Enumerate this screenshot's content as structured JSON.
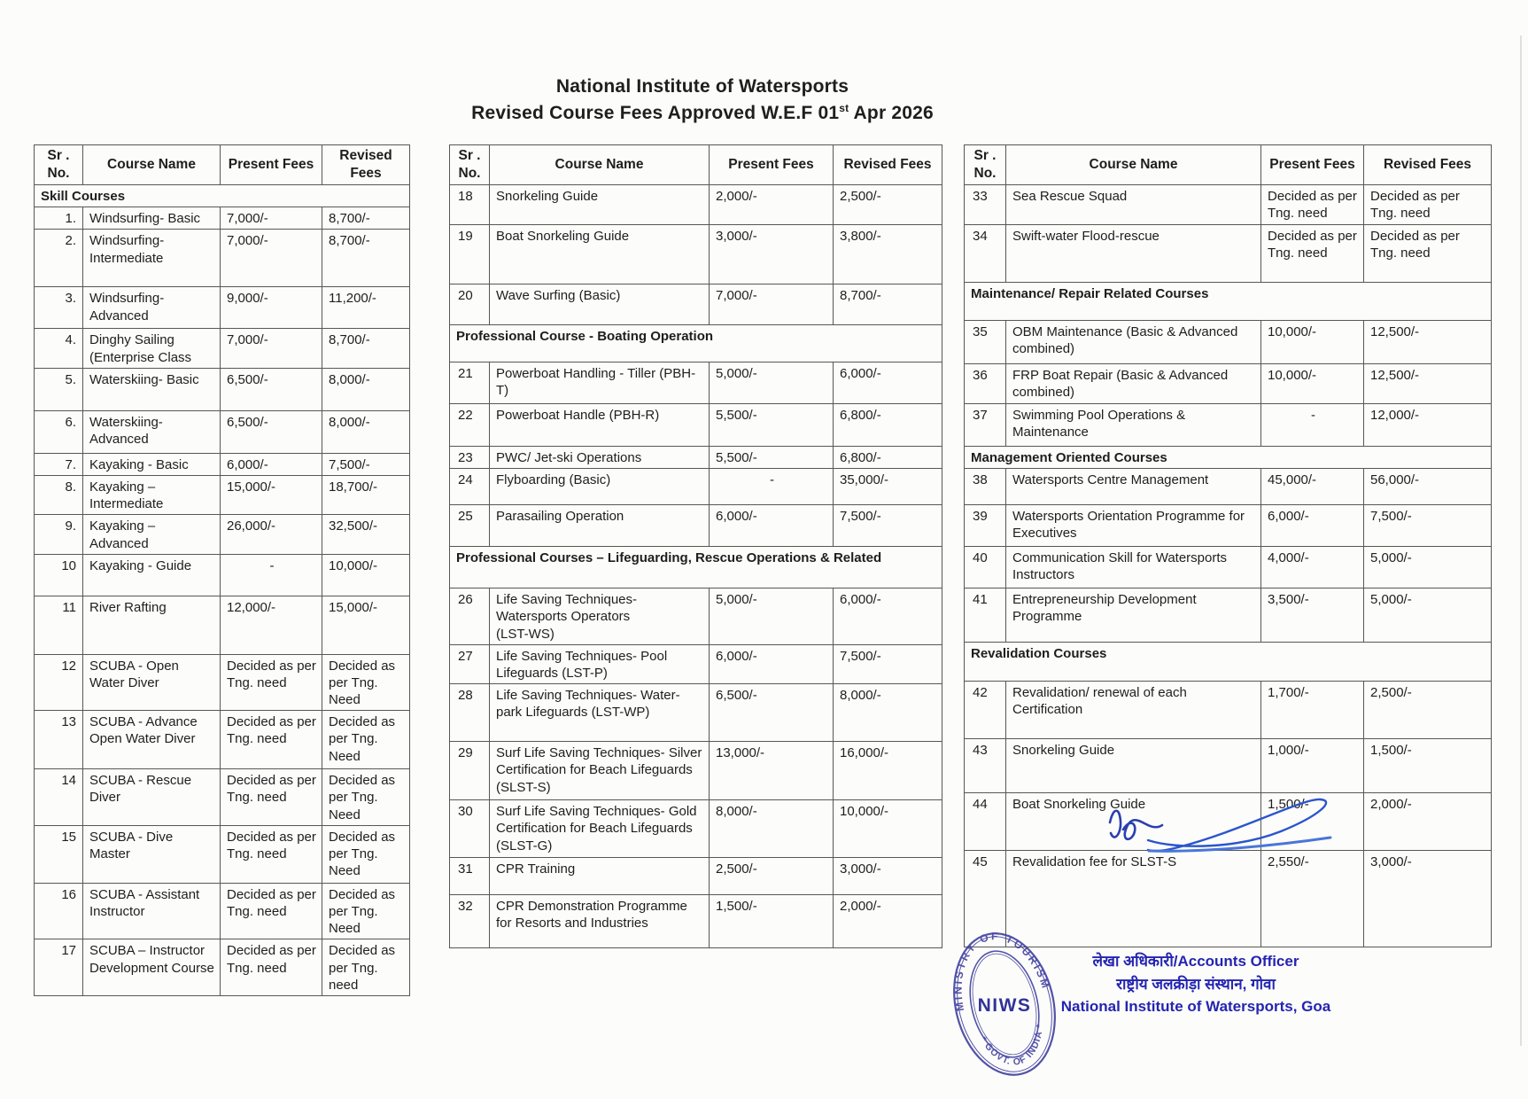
{
  "title": {
    "line1": "National Institute of Watersports",
    "line2_prefix": "Revised Course Fees Approved W.E.F 01",
    "line2_sup": "st",
    "line2_suffix": " Apr 2026"
  },
  "table_headers": {
    "sr": "Sr .\nNo.",
    "course": "Course Name",
    "present": "Present Fees",
    "revised": "Revised Fees"
  },
  "tables": [
    {
      "id": "left",
      "rows": [
        {
          "type": "section",
          "label": "Skill Courses"
        },
        {
          "type": "course",
          "sr": "1.",
          "name": "Windsurfing- Basic",
          "present": "7,000/-",
          "revised": "8,700/-"
        },
        {
          "type": "course",
          "sr": "2.",
          "name": "Windsurfing- Intermediate",
          "present": "7,000/-",
          "revised": "8,700/-"
        },
        {
          "type": "course",
          "sr": "3.",
          "name": "Windsurfing- Advanced",
          "present": "9,000/-",
          "revised": "11,200/-"
        },
        {
          "type": "course",
          "sr": "4.",
          "name": "Dinghy Sailing (Enterprise Class",
          "present": "7,000/-",
          "revised": "8,700/-"
        },
        {
          "type": "course",
          "sr": "5.",
          "name": "Waterskiing- Basic",
          "present": "6,500/-",
          "revised": "8,000/-"
        },
        {
          "type": "course",
          "sr": "6.",
          "name": "Waterskiing- Advanced",
          "present": "6,500/-",
          "revised": "8,000/-"
        },
        {
          "type": "course",
          "sr": "7.",
          "name": "Kayaking - Basic",
          "present": "6,000/-",
          "revised": "7,500/-"
        },
        {
          "type": "course",
          "sr": "8.",
          "name": "Kayaking – Intermediate",
          "present": "15,000/-",
          "revised": "18,700/-"
        },
        {
          "type": "course",
          "sr": "9.",
          "name": "Kayaking – Advanced",
          "present": "26,000/-",
          "revised": "32,500/-"
        },
        {
          "type": "course",
          "sr": "10",
          "name": "Kayaking - Guide",
          "present": "-",
          "revised": "10,000/-"
        },
        {
          "type": "course",
          "sr": "11",
          "name": "River Rafting",
          "present": "12,000/-",
          "revised": "15,000/-"
        },
        {
          "type": "course",
          "sr": "12",
          "name": "SCUBA - Open Water Diver",
          "present": "Decided as per Tng. need",
          "revised": "Decided as per Tng. Need"
        },
        {
          "type": "course",
          "sr": "13",
          "name": "SCUBA -  Advance Open Water Diver",
          "present": "Decided as per Tng. need",
          "revised": "Decided as per Tng. Need"
        },
        {
          "type": "course",
          "sr": "14",
          "name": "SCUBA -  Rescue Diver",
          "present": "Decided as per Tng. need",
          "revised": "Decided as per Tng. Need"
        },
        {
          "type": "course",
          "sr": "15",
          "name": "SCUBA -  Dive Master",
          "present": "Decided as per Tng. need",
          "revised": "Decided as per Tng. Need"
        },
        {
          "type": "course",
          "sr": "16",
          "name": "SCUBA -  Assistant Instructor",
          "present": "Decided as per Tng. need",
          "revised": "Decided as per Tng. Need"
        },
        {
          "type": "course",
          "sr": "17",
          "name": "SCUBA – Instructor Development Course",
          "present": "Decided as per Tng. need",
          "revised": "Decided as per Tng. need"
        }
      ]
    },
    {
      "id": "middle",
      "rows": [
        {
          "type": "course",
          "sr": "18",
          "name": "Snorkeling Guide",
          "present": "2,000/-",
          "revised": "2,500/-"
        },
        {
          "type": "course",
          "sr": "19",
          "name": "Boat Snorkeling Guide",
          "present": "3,000/-",
          "revised": "3,800/-"
        },
        {
          "type": "course",
          "sr": "20",
          "name": "Wave Surfing (Basic)",
          "present": "7,000/-",
          "revised": "8,700/-"
        },
        {
          "type": "section",
          "label": "Professional Course - Boating Operation"
        },
        {
          "type": "course",
          "sr": "21",
          "name": "Powerboat Handling - Tiller (PBH-T)",
          "present": "5,000/-",
          "revised": "6,000/-"
        },
        {
          "type": "course",
          "sr": "22",
          "name": "Powerboat Handle (PBH-R)",
          "present": "5,500/-",
          "revised": "6,800/-"
        },
        {
          "type": "course",
          "sr": "23",
          "name": "PWC/ Jet-ski Operations",
          "present": "5,500/-",
          "revised": "6,800/-"
        },
        {
          "type": "course",
          "sr": "24",
          "name": "Flyboarding (Basic)",
          "present": "-",
          "revised": "35,000/-"
        },
        {
          "type": "course",
          "sr": "25",
          "name": "Parasailing Operation",
          "present": "6,000/-",
          "revised": "7,500/-"
        },
        {
          "type": "section",
          "label": "Professional Courses – Lifeguarding, Rescue Operations & Related"
        },
        {
          "type": "course",
          "sr": "26",
          "name": "Life Saving Techniques- Watersports Operators\n(LST-WS)",
          "present": "5,000/-",
          "revised": "6,000/-"
        },
        {
          "type": "course",
          "sr": "27",
          "name": "Life Saving Techniques- Pool Lifeguards (LST-P)",
          "present": "6,000/-",
          "revised": "7,500/-"
        },
        {
          "type": "course",
          "sr": "28",
          "name": "Life Saving Techniques- Water-park Lifeguards (LST-WP)",
          "present": "6,500/-",
          "revised": "8,000/-"
        },
        {
          "type": "course",
          "sr": "29",
          "name": "Surf Life Saving Techniques- Silver Certification for Beach Lifeguards (SLST-S)",
          "present": "13,000/-",
          "revised": "16,000/-"
        },
        {
          "type": "course",
          "sr": "30",
          "name": "Surf Life Saving Techniques- Gold Certification for Beach Lifeguards (SLST-G)",
          "present": "8,000/-",
          "revised": "10,000/-"
        },
        {
          "type": "course",
          "sr": "31",
          "name": "CPR Training",
          "present": "2,500/-",
          "revised": "3,000/-"
        },
        {
          "type": "course",
          "sr": "32",
          "name": "CPR Demonstration Programme for Resorts and Industries",
          "present": "1,500/-",
          "revised": "2,000/-"
        }
      ]
    },
    {
      "id": "right",
      "rows": [
        {
          "type": "course",
          "sr": "33",
          "name": "Sea Rescue Squad",
          "present": "Decided as per Tng. need",
          "revised": "Decided as per Tng. need"
        },
        {
          "type": "course",
          "sr": "34",
          "name": "Swift-water Flood-rescue",
          "present": "Decided as per Tng. need",
          "revised": "Decided as per Tng. need"
        },
        {
          "type": "section",
          "label": "Maintenance/ Repair Related Courses"
        },
        {
          "type": "course",
          "sr": "35",
          "name": "OBM Maintenance (Basic & Advanced combined)",
          "present": "10,000/-",
          "revised": "12,500/-"
        },
        {
          "type": "course",
          "sr": "36",
          "name": "FRP Boat Repair (Basic & Advanced combined)",
          "present": "10,000/-",
          "revised": "12,500/-"
        },
        {
          "type": "course",
          "sr": "37",
          "name": "Swimming Pool Operations & Maintenance",
          "present": "-",
          "revised": "12,000/-"
        },
        {
          "type": "section",
          "label": "Management Oriented Courses"
        },
        {
          "type": "course",
          "sr": "38",
          "name": "Watersports Centre Management",
          "present": "45,000/-",
          "revised": "56,000/-"
        },
        {
          "type": "course",
          "sr": "39",
          "name": "Watersports Orientation Programme for Executives",
          "present": "6,000/-",
          "revised": "7,500/-"
        },
        {
          "type": "course",
          "sr": "40",
          "name": "Communication Skill for Watersports Instructors",
          "present": "4,000/-",
          "revised": "5,000/-"
        },
        {
          "type": "course",
          "sr": "41",
          "name": "Entrepreneurship Development Programme",
          "present": "3,500/-",
          "revised": "5,000/-"
        },
        {
          "type": "section",
          "label": "Revalidation Courses"
        },
        {
          "type": "course",
          "sr": "42",
          "name": "Revalidation/ renewal of each Certification",
          "present": "1,700/-",
          "revised": "2,500/-"
        },
        {
          "type": "course",
          "sr": "43",
          "name": "Snorkeling Guide",
          "present": "1,000/-",
          "revised": "1,500/-"
        },
        {
          "type": "course",
          "sr": "44",
          "name": "Boat Snorkeling Guide",
          "present": "1,500/-",
          "revised": "2,000/-"
        },
        {
          "type": "course",
          "sr": "45",
          "name": "Revalidation fee for SLST-S",
          "present": "2,550/-",
          "revised": "3,000/-"
        }
      ]
    }
  ],
  "stamp": {
    "top_text": "MINISTRY OF TOURISM",
    "bottom_text": "* GOVT. OF INDIA *",
    "center_text": "NIWS",
    "color": "#3b3b9e"
  },
  "signoff": {
    "line1": "लेखा अधिकारी/Accounts Officer",
    "line2": "राष्ट्रीय जलक्रीड़ा संस्थान, गोवा",
    "line3": "National Institute of Watersports, Goa",
    "color": "#2424b2"
  }
}
